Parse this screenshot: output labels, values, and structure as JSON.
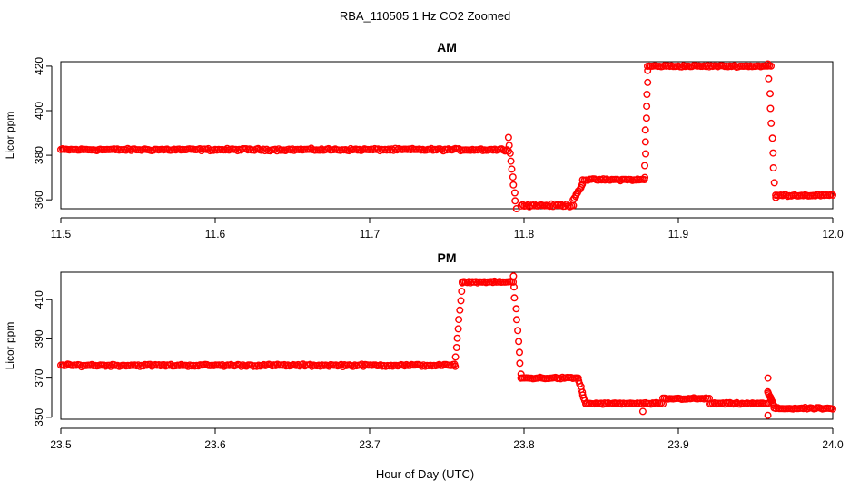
{
  "figure": {
    "suptitle": "RBA_110505  1 Hz CO2 Zoomed",
    "xlabel": "Hour of Day (UTC)"
  },
  "colors": {
    "points": "#ff0000",
    "axes": "#000000"
  },
  "chart_data": [
    {
      "type": "scatter",
      "title": "AM",
      "xlabel": "Hour of Day (UTC)",
      "ylabel": "Licor ppm",
      "xlim": [
        11.5,
        12.0
      ],
      "ylim": [
        356,
        422
      ],
      "x_ticks": [
        11.5,
        11.6,
        11.7,
        11.8,
        11.9,
        12.0
      ],
      "x_tick_labels": [
        "11.5",
        "11.6",
        "11.7",
        "11.8",
        "11.9",
        "12.0"
      ],
      "y_ticks": [
        360,
        380,
        400,
        420
      ],
      "y_tick_labels": [
        "360",
        "380",
        "400",
        "420"
      ],
      "grid": false,
      "marker": "open-circle",
      "segments": [
        {
          "x": [
            11.5,
            11.79
          ],
          "y": [
            382.5,
            382.5
          ],
          "noise": 0.7
        },
        {
          "x": [
            11.798,
            11.832
          ],
          "y": [
            357.5,
            357.5
          ],
          "noise": 0.8
        },
        {
          "x": [
            11.838,
            11.878
          ],
          "y": [
            369,
            369
          ],
          "noise": 0.6
        },
        {
          "x": [
            11.88,
            11.96
          ],
          "y": [
            420,
            420
          ],
          "noise": 0.5
        },
        {
          "x": [
            11.963,
            12.0
          ],
          "y": [
            362,
            362
          ],
          "noise": 0.5
        }
      ],
      "transitions": [
        {
          "x": [
            11.79,
            11.795
          ],
          "y": [
            388,
            356
          ]
        },
        {
          "x": [
            11.832,
            11.838
          ],
          "y": [
            360,
            367
          ]
        },
        {
          "x": [
            11.878,
            11.88
          ],
          "y": [
            370,
            418
          ]
        },
        {
          "x": [
            11.958,
            11.963
          ],
          "y": [
            421,
            361
          ]
        }
      ]
    },
    {
      "type": "scatter",
      "title": "PM",
      "xlabel": "Hour of Day (UTC)",
      "ylabel": "Licor ppm",
      "xlim": [
        23.5,
        24.0
      ],
      "ylim": [
        349,
        424
      ],
      "x_ticks": [
        23.5,
        23.6,
        23.7,
        23.8,
        23.9,
        24.0
      ],
      "x_tick_labels": [
        "23.5",
        "23.6",
        "23.7",
        "23.8",
        "23.9",
        "24.0"
      ],
      "y_ticks": [
        350,
        370,
        390,
        410
      ],
      "y_tick_labels": [
        "350",
        "370",
        "390",
        "410"
      ],
      "grid": false,
      "marker": "open-circle",
      "segments": [
        {
          "x": [
            23.5,
            23.755
          ],
          "y": [
            376.5,
            376.5
          ],
          "noise": 0.8
        },
        {
          "x": [
            23.76,
            23.793
          ],
          "y": [
            419,
            419
          ],
          "noise": 0.5
        },
        {
          "x": [
            23.798,
            23.835
          ],
          "y": [
            370,
            370
          ],
          "noise": 0.7
        },
        {
          "x": [
            23.84,
            23.89
          ],
          "y": [
            357,
            357
          ],
          "noise": 0.6
        },
        {
          "x": [
            23.89,
            23.92
          ],
          "y": [
            359.5,
            359.5
          ],
          "noise": 0.6
        },
        {
          "x": [
            23.92,
            23.958
          ],
          "y": [
            357,
            357
          ],
          "noise": 0.6
        },
        {
          "x": [
            23.962,
            24.0
          ],
          "y": [
            354.5,
            354.5
          ],
          "noise": 0.6
        }
      ],
      "transitions": [
        {
          "x": [
            23.755,
            23.76
          ],
          "y": [
            376,
            419
          ]
        },
        {
          "x": [
            23.793,
            23.798
          ],
          "y": [
            422,
            372
          ]
        },
        {
          "x": [
            23.835,
            23.84
          ],
          "y": [
            370,
            357
          ]
        },
        {
          "x": [
            23.958,
            23.962
          ],
          "y": [
            363,
            356
          ]
        }
      ],
      "outliers": [
        {
          "x": 23.958,
          "y": 351
        },
        {
          "x": 23.958,
          "y": 370
        },
        {
          "x": 23.877,
          "y": 353
        }
      ]
    }
  ]
}
